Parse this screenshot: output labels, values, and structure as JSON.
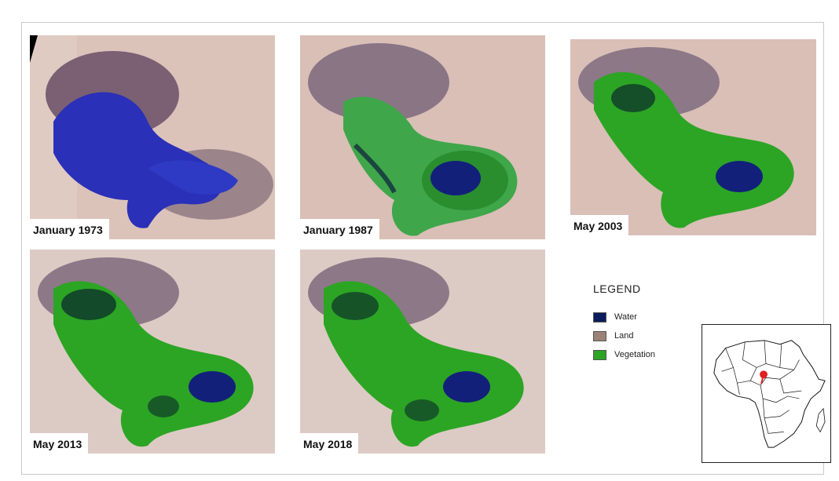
{
  "panels": [
    {
      "caption": "January 1973",
      "water_extent": "large",
      "vegetation_extent": "none"
    },
    {
      "caption": "January 1987",
      "water_extent": "small",
      "vegetation_extent": "moderate"
    },
    {
      "caption": "May 2003",
      "water_extent": "small",
      "vegetation_extent": "large"
    },
    {
      "caption": "May 2013",
      "water_extent": "small",
      "vegetation_extent": "large"
    },
    {
      "caption": "May 2018",
      "water_extent": "small",
      "vegetation_extent": "large"
    }
  ],
  "legend": {
    "title": "LEGEND",
    "items": [
      {
        "label": "Water",
        "color": "#0b1c5c"
      },
      {
        "label": "Land",
        "color": "#9a8276"
      },
      {
        "label": "Vegetation",
        "color": "#2ca524"
      }
    ]
  },
  "colors": {
    "desert": "#d9bfb6",
    "dunes": "#7f6c7a",
    "water_1973": "#2a30b8",
    "water": "#12207a",
    "vegetation": "#2ca524",
    "marker": "#e02020"
  }
}
